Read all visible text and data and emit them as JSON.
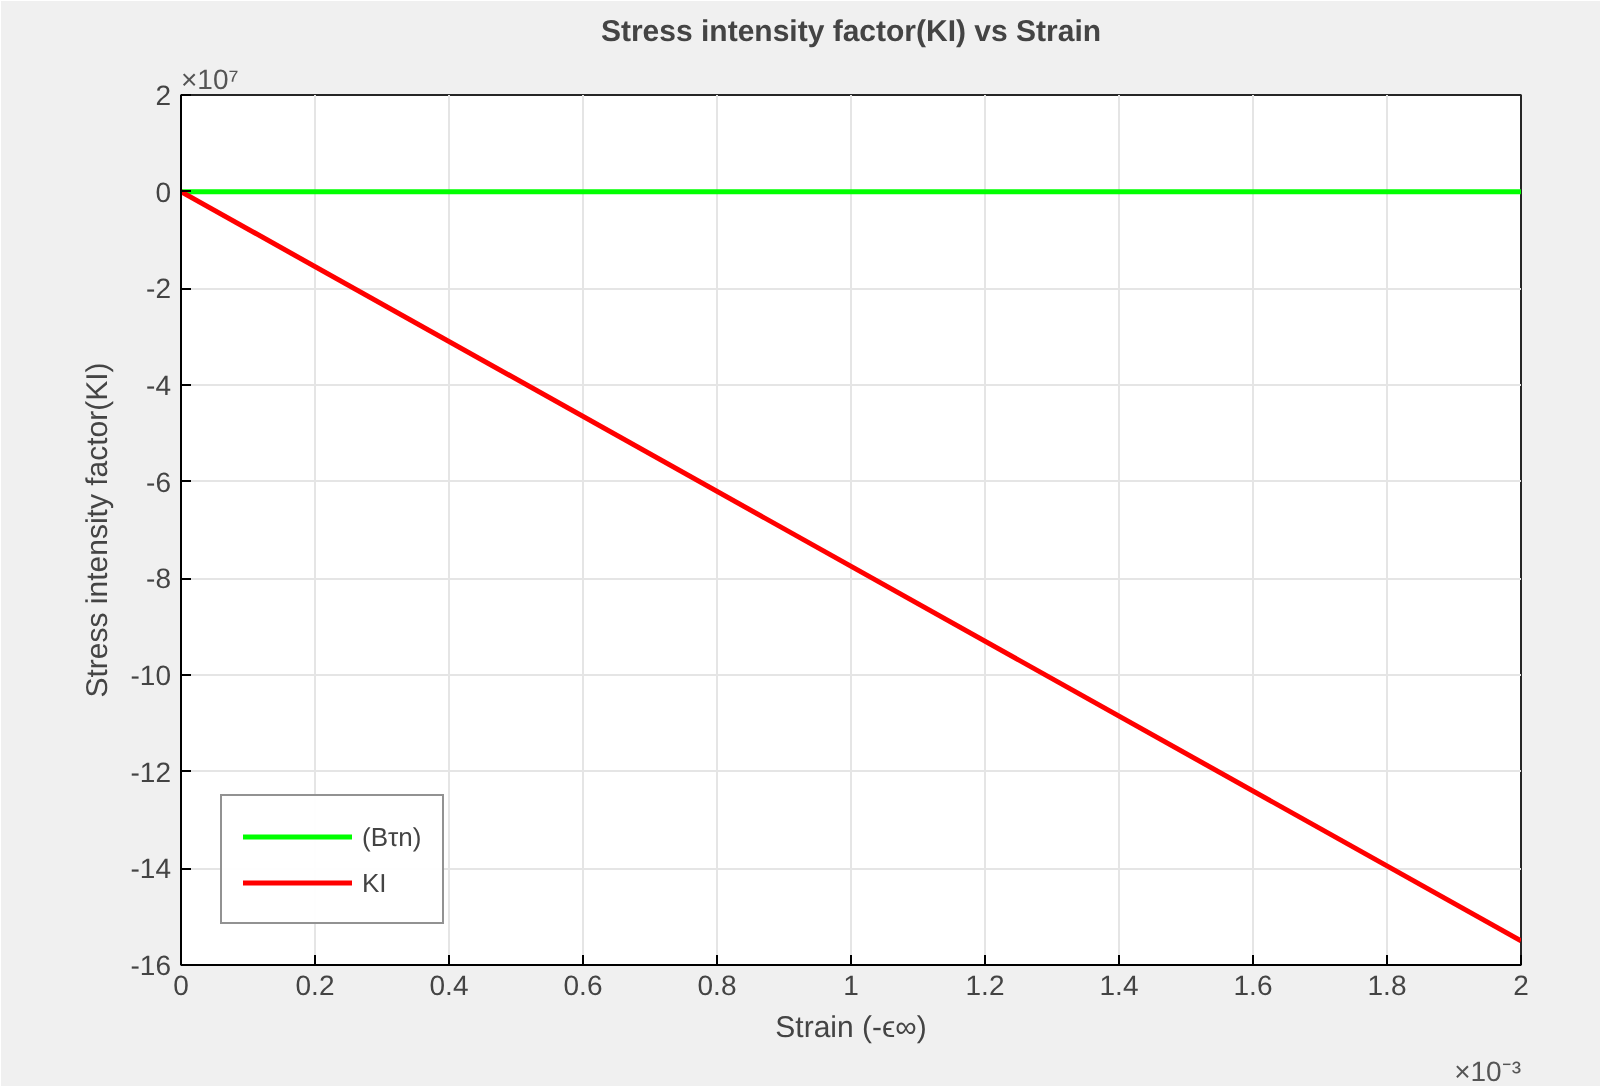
{
  "chart_data": {
    "type": "line",
    "title": "Stress intensity factor(KI) vs Strain",
    "xlabel": "Strain (-ϵ∞)",
    "ylabel": "Stress intensity factor(KI)",
    "annotations": [
      "×10⁷",
      "×10⁻³"
    ],
    "series": [
      {
        "name": "(Bτn)",
        "color": "#00ff00",
        "values": [
          0,
          0
        ]
      },
      {
        "name": "KI",
        "color": "#ff0000",
        "values": [
          0,
          -15.5
        ]
      }
    ],
    "x": [
      0,
      2
    ],
    "xlim": [
      0,
      2
    ],
    "xticks": [
      0,
      0.2,
      0.4,
      0.6,
      0.8,
      1,
      1.2,
      1.4,
      1.6,
      1.8,
      2
    ],
    "ylim": [
      -16,
      2
    ],
    "yticks": [
      -16,
      -14,
      -12,
      -10,
      -8,
      -6,
      -4,
      -2,
      0,
      2
    ],
    "grid": true,
    "legend": "bottom left",
    "marker": "none",
    "line_style": "solid"
  }
}
